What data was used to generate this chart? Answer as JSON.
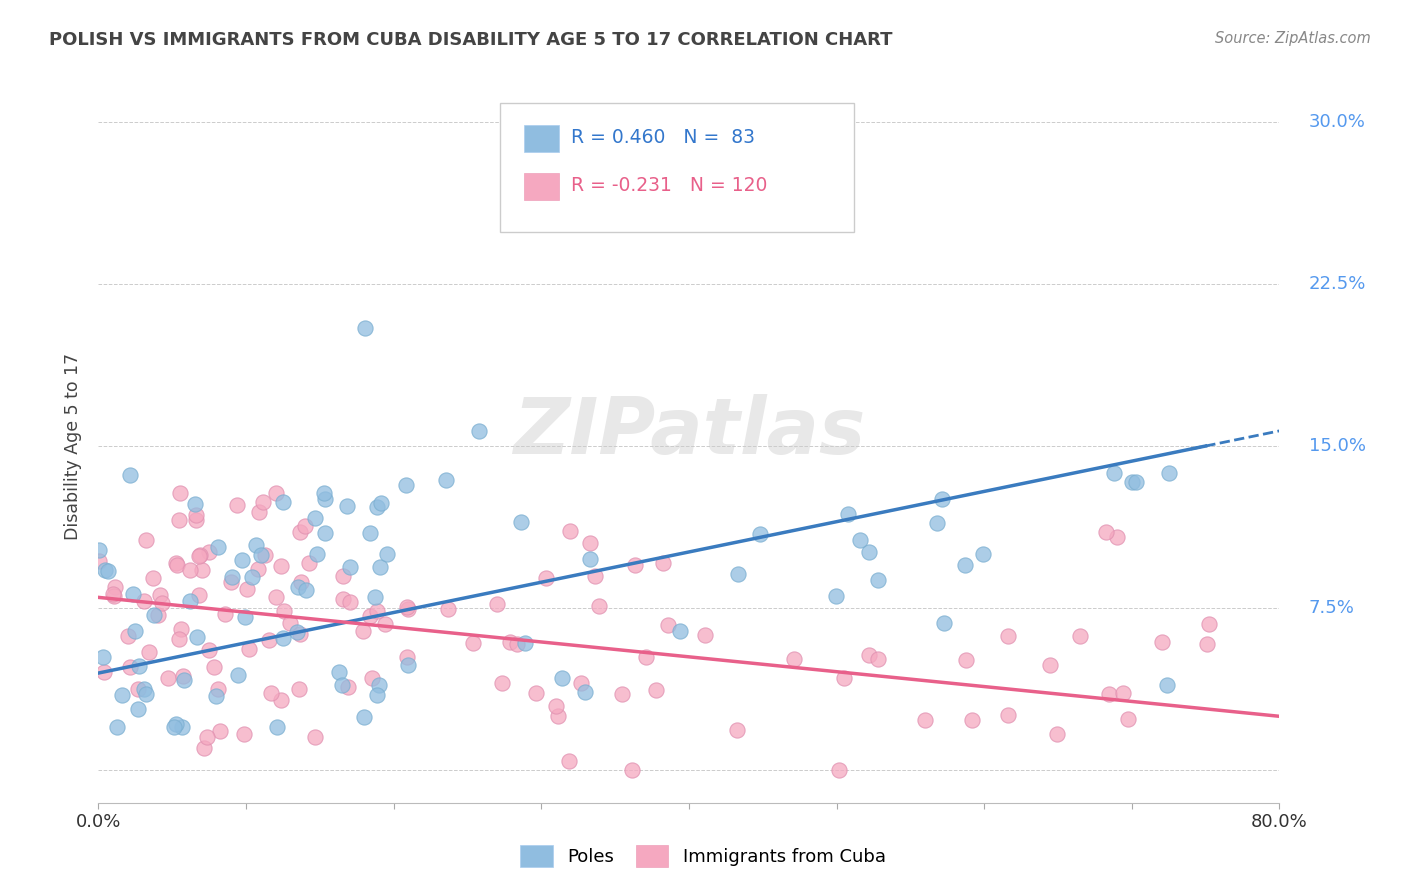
{
  "title": "POLISH VS IMMIGRANTS FROM CUBA DISABILITY AGE 5 TO 17 CORRELATION CHART",
  "source": "Source: ZipAtlas.com",
  "ylabel": "Disability Age 5 to 17",
  "xlim": [
    0.0,
    0.8
  ],
  "ylim": [
    -0.015,
    0.315
  ],
  "yticks": [
    0.0,
    0.075,
    0.15,
    0.225,
    0.3
  ],
  "ytick_labels": [
    "",
    "7.5%",
    "15.0%",
    "22.5%",
    "30.0%"
  ],
  "blue_R": 0.46,
  "blue_N": 83,
  "pink_R": -0.231,
  "pink_N": 120,
  "blue_color": "#90bde0",
  "pink_color": "#f5a8c0",
  "blue_line_color": "#3a7bbf",
  "pink_line_color": "#e8608a",
  "watermark": "ZIPatlas",
  "background_color": "#ffffff",
  "grid_color": "#cccccc",
  "title_color": "#444444",
  "tick_color": "#5599ee",
  "blue_seed": 12,
  "pink_seed": 7
}
